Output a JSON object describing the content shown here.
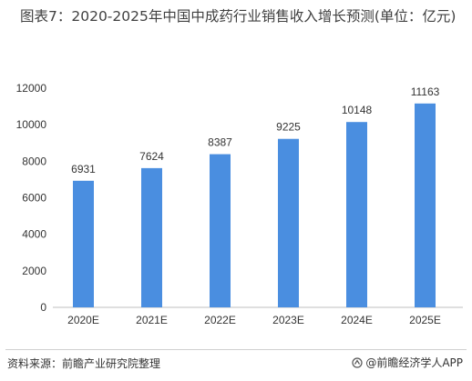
{
  "chart_data": {
    "type": "bar",
    "title": "图表7：2020-2025年中国中成药行业销售收入增长预测(单位：亿元)",
    "categories": [
      "2020E",
      "2021E",
      "2022E",
      "2023E",
      "2024E",
      "2025E"
    ],
    "values": [
      6931,
      7624,
      8387,
      9225,
      10148,
      11163
    ],
    "data_labels": [
      "6931",
      "7624",
      "8387",
      "9225",
      "10148",
      "11163"
    ],
    "ylim": [
      0,
      12000
    ],
    "yticks": [
      "0",
      "2000",
      "4000",
      "6000",
      "8000",
      "10000",
      "12000"
    ],
    "xlabel": "",
    "ylabel": "",
    "grid": false,
    "legend": "none",
    "bar_color": "#4a8ee0"
  },
  "footer": {
    "source": "资料来源：前瞻产业研究院整理",
    "brand": "@前瞻经济学人APP",
    "brand_icon": "brand-logo-icon"
  }
}
